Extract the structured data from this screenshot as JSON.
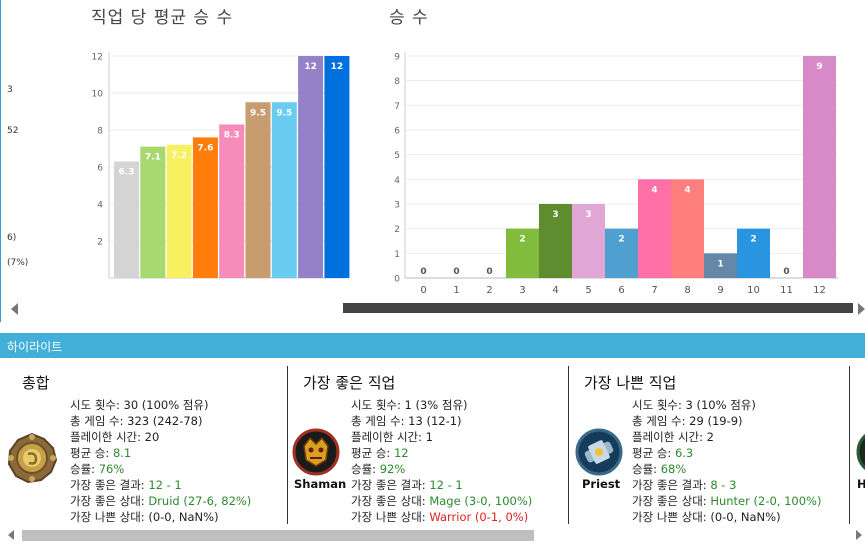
{
  "left_stub": [
    "3",
    "52",
    "6)",
    "(7%)"
  ],
  "charts": [
    {
      "title": "직업 당 평균 승 수",
      "chart_data": {
        "type": "bar",
        "values": [
          6.3,
          7.1,
          7.2,
          7.6,
          8.3,
          9.5,
          9.5,
          12,
          12
        ],
        "labels": [
          "6.3",
          "7.1",
          "7.2",
          "7.6",
          "8.3",
          "9.5",
          "9.5",
          "12",
          "12"
        ],
        "colors": [
          "#d4d4d4",
          "#a8d870",
          "#f8f060",
          "#ff7d0a",
          "#f58cba",
          "#c79c6e",
          "#69ccf0",
          "#9482c9",
          "#0070de"
        ],
        "yticks": [
          2,
          4,
          6,
          8,
          10,
          12
        ],
        "ylim": [
          0,
          12
        ],
        "grid": true
      }
    },
    {
      "title": "승 수",
      "chart_data": {
        "type": "bar",
        "categories": [
          "0",
          "1",
          "2",
          "3",
          "4",
          "5",
          "6",
          "7",
          "8",
          "9",
          "10",
          "11",
          "12"
        ],
        "values": [
          0,
          0,
          0,
          2,
          3,
          3,
          2,
          4,
          4,
          1,
          2,
          0,
          9
        ],
        "colors": [
          "#999999",
          "#999999",
          "#999999",
          "#82bc3c",
          "#5e8c2e",
          "#e0a6d6",
          "#4fa0d0",
          "#ff6fa8",
          "#ff7f7f",
          "#6688a8",
          "#2994e0",
          "#999999",
          "#d889c8"
        ],
        "yticks": [
          0,
          1,
          2,
          3,
          4,
          5,
          6,
          7,
          8,
          9
        ],
        "ylim": [
          0,
          9
        ],
        "grid": true
      }
    }
  ],
  "highlight": {
    "header": "하이라이트",
    "panels": [
      {
        "title": "총합",
        "class_name": "",
        "icon": "hearthstone-coin-icon",
        "rows": [
          {
            "label": "시도 횟수: ",
            "value": "30 (100% 점유)",
            "color": ""
          },
          {
            "label": "총 게임 수: ",
            "value": "323 (242-78)",
            "color": ""
          },
          {
            "label": "플레이한 시간: ",
            "value": "20",
            "color": ""
          },
          {
            "label": "평균 승: ",
            "value": "8.1",
            "color": "g"
          },
          {
            "label": "승률: ",
            "value": "76%",
            "color": "g"
          },
          {
            "label": "가장 좋은 결과: ",
            "value": "12 - 1",
            "color": "g"
          },
          {
            "label": "가장 좋은 상대: ",
            "value": "Druid (27-6, 82%)",
            "color": "g"
          },
          {
            "label": "가장 나쁜 상대: ",
            "value": " (0-0, NaN%)",
            "color": ""
          }
        ]
      },
      {
        "title": "가장 좋은 직업",
        "class_name": "Shaman",
        "icon": "shaman-class-icon",
        "rows": [
          {
            "label": "시도 횟수: ",
            "value": "1 (3% 점유)",
            "color": ""
          },
          {
            "label": "총 게임 수: ",
            "value": "13 (12-1)",
            "color": ""
          },
          {
            "label": "플레이한 시간: ",
            "value": "1",
            "color": ""
          },
          {
            "label": "평균 승: ",
            "value": "12",
            "color": "g"
          },
          {
            "label": "승률: ",
            "value": "92%",
            "color": "g"
          },
          {
            "label": "가장 좋은 결과: ",
            "value": "12 - 1",
            "color": "g"
          },
          {
            "label": "가장 좋은 상대: ",
            "value": "Mage (3-0, 100%)",
            "color": "g"
          },
          {
            "label": "가장 나쁜 상대: ",
            "value": "Warrior (0-1, 0%)",
            "color": "r"
          }
        ]
      },
      {
        "title": "가장 나쁜 직업",
        "class_name": "Priest",
        "icon": "priest-class-icon",
        "rows": [
          {
            "label": "시도 횟수: ",
            "value": "3 (10% 점유)",
            "color": ""
          },
          {
            "label": "총 게임 수: ",
            "value": "29 (19-9)",
            "color": ""
          },
          {
            "label": "플레이한 시간: ",
            "value": "2",
            "color": ""
          },
          {
            "label": "평균 승: ",
            "value": "6.3",
            "color": "g"
          },
          {
            "label": "승률: ",
            "value": "68%",
            "color": "g"
          },
          {
            "label": "가장 좋은 결과: ",
            "value": "8 - 3",
            "color": "g"
          },
          {
            "label": "가장 좋은 상대: ",
            "value": "Hunter (2-0, 100%)",
            "color": "g"
          },
          {
            "label": "가장 나쁜 상대: ",
            "value": " (0-0, NaN%)",
            "color": ""
          }
        ]
      }
    ],
    "partial_class_name": "H"
  }
}
